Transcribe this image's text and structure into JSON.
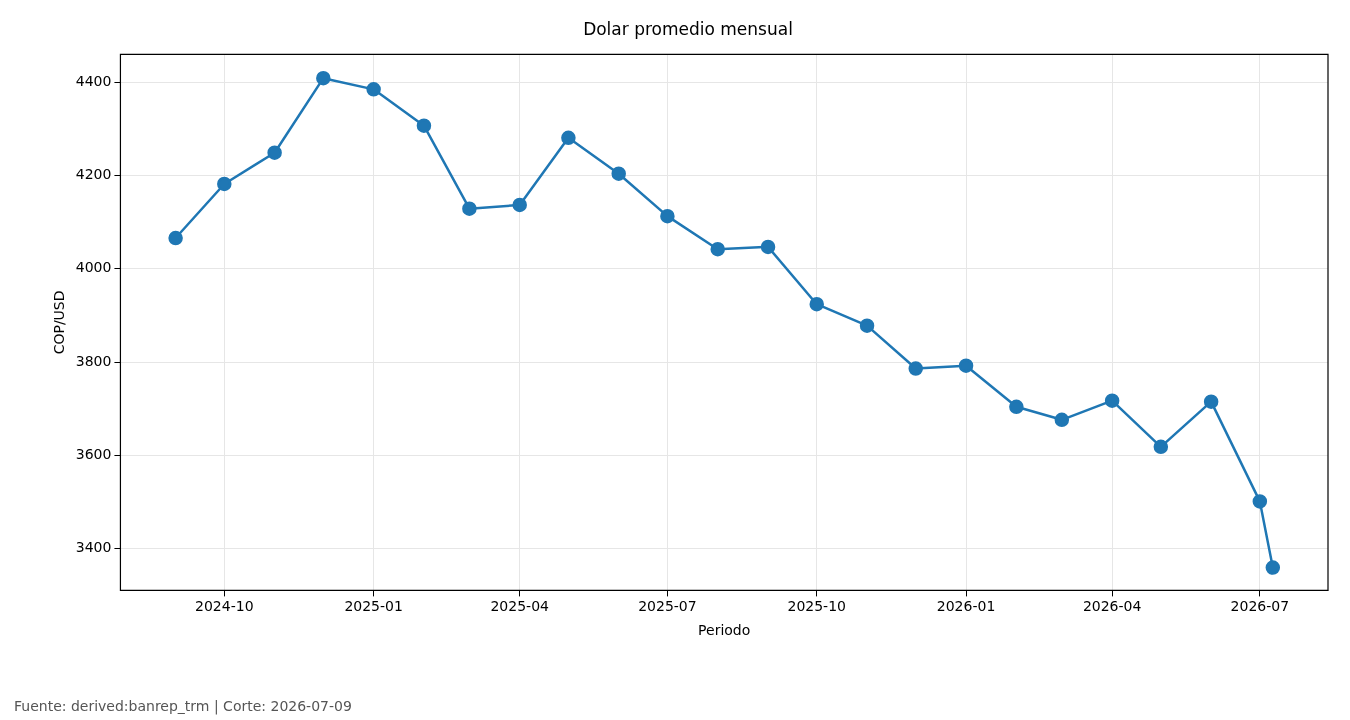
{
  "chart_data": {
    "type": "line",
    "title": "Dolar promedio mensual",
    "xlabel": "Periodo",
    "ylabel": "COP/USD",
    "x": [
      "2024-09-01",
      "2024-10-01",
      "2024-11-01",
      "2024-12-01",
      "2025-01-01",
      "2025-02-01",
      "2025-03-01",
      "2025-04-01",
      "2025-05-01",
      "2025-06-01",
      "2025-07-01",
      "2025-08-01",
      "2025-09-01",
      "2025-10-01",
      "2025-11-01",
      "2025-12-01",
      "2026-01-01",
      "2026-02-01",
      "2026-03-01",
      "2026-04-01",
      "2026-05-01",
      "2026-06-01",
      "2026-07-01",
      "2026-07-09"
    ],
    "series": [
      {
        "color": "#1f77b4",
        "values": [
          4066,
          4182,
          4249,
          4409,
          4385,
          4307,
          4129,
          4137,
          4281,
          4204,
          4113,
          4042,
          4047,
          3924,
          3878,
          3786,
          3792,
          3704,
          3676,
          3717,
          3618,
          3715,
          3501,
          3359
        ]
      }
    ],
    "xlim": [
      "2024-07-29",
      "2026-08-12"
    ],
    "xticks": [
      "2024-10",
      "2025-01",
      "2025-04",
      "2025-07",
      "2025-10",
      "2026-01",
      "2026-04",
      "2026-07"
    ],
    "ylim": [
      3310,
      4460
    ],
    "yticks": [
      3400,
      3600,
      3800,
      4000,
      4200,
      4400
    ],
    "grid": true,
    "marker": "circle",
    "line_style": "solid",
    "annotations": [
      "Fuente: derived:banrep_trm | Corte: 2026-07-09"
    ]
  }
}
